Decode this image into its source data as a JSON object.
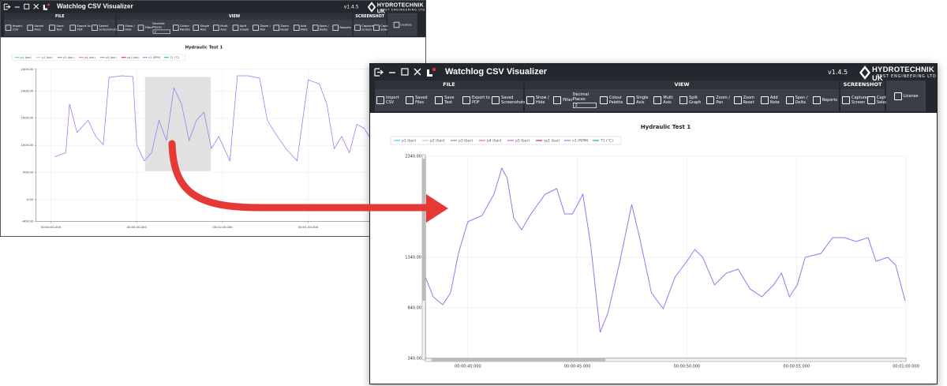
{
  "app": {
    "title": "Watchlog CSV Visualizer",
    "version": "v1.4.5",
    "logo": "HYDROTECHNIK UK",
    "logo_sub": "TEST ENGINEERING LTD"
  },
  "toolbar": {
    "groups": [
      {
        "title": "FILE",
        "buttons": [
          "Import CSV",
          "Saved Files",
          "Save Test",
          "Export to PDF",
          "Saved Screenshots"
        ]
      },
      {
        "title": "VIEW",
        "buttons": [
          "Show / Hide",
          "Filter",
          "Colour Palette",
          "Single Axis",
          "Multi Axis",
          "Split Graph",
          "Zoom / Pan",
          "Zoom Reset",
          "Add Note",
          "Span / Delta",
          "Reports"
        ]
      },
      {
        "title": "SCREENSHOT",
        "buttons": [
          "Capture Screen",
          "Capture Selection"
        ]
      }
    ],
    "decimal": {
      "label": "Decimal Places",
      "value": "2"
    },
    "license": "License"
  },
  "legend": [
    {
      "name": "p1 (bar)",
      "color": "#4fc3f7"
    },
    {
      "name": "p2 (bar)",
      "color": "#a5d6a7"
    },
    {
      "name": "p3 (bar)",
      "color": "#6c8ebf"
    },
    {
      "name": "p4 (bar)",
      "color": "#e57373"
    },
    {
      "name": "p5 (bar)",
      "color": "#ba68c8"
    },
    {
      "name": "sp1 (bar)",
      "color": "#c62828"
    },
    {
      "name": "n1 (RPM)",
      "color": "#a070f0"
    },
    {
      "name": "T1 (°C)",
      "color": "#26a69a"
    }
  ],
  "overview_chart": {
    "type": "line",
    "title": "Hydraulic Test 1",
    "xlim": [
      -5.2,
      112.2
    ],
    "ylim": [
      -400,
      2400
    ],
    "xticks": [
      {
        "value": 0,
        "label": "00:00:00.000"
      },
      {
        "value": 30,
        "label": "00:00:30.000"
      },
      {
        "value": 60,
        "label": "00:01:00.000"
      },
      {
        "value": 90,
        "label": "00:01:30.000"
      }
    ],
    "yticks": [
      {
        "value": -400,
        "label": "-400.00"
      },
      {
        "value": 0,
        "label": "0.00"
      },
      {
        "value": 500,
        "label": "500.00"
      },
      {
        "value": 1000,
        "label": "1000.00"
      },
      {
        "value": 1500,
        "label": "1500.00"
      },
      {
        "value": 2000,
        "label": "2000.00"
      },
      {
        "value": 2400,
        "label": "2400.00"
      }
    ],
    "grid": true,
    "x": [
      1.3,
      5.2,
      6.5,
      9.1,
      13.0,
      15.7,
      18.3,
      20.3,
      24.8,
      28.7,
      30.0,
      32.6,
      35.2,
      37.8,
      40.4,
      43.0,
      45.7,
      48.3,
      50.9,
      53.5,
      56.1,
      58.7,
      62.6,
      65.2,
      69.1,
      73.0,
      75.7,
      78.3,
      82.2,
      86.1,
      90.0,
      93.9,
      96.5,
      99.1,
      101.7,
      104.4,
      107.0,
      109.6,
      112.2
    ],
    "series": [
      {
        "color": "#a070f0",
        "values": [
          790,
          864,
          1759,
          1237,
          1461,
          1162,
          1013,
          2250,
          2280,
          2265,
          1013,
          715,
          864,
          1461,
          1088,
          2057,
          1759,
          1088,
          1461,
          1610,
          939,
          1162,
          715,
          2280,
          2280,
          2235,
          1461,
          1237,
          939,
          715,
          2206,
          2131,
          1759,
          939,
          1162,
          864,
          1386,
          1312,
          1088
        ]
      }
    ]
  },
  "zoom_chart": {
    "type": "line",
    "title": "Hydraulic Test 1",
    "xlim": [
      38.06,
      60
    ],
    "ylim": [
      340,
      2340
    ],
    "xticks": [
      {
        "value": 40,
        "label": "00:00:40.000"
      },
      {
        "value": 45,
        "label": "00:00:45.000"
      },
      {
        "value": 50,
        "label": "00:00:50.000"
      },
      {
        "value": 55,
        "label": "00:00:55.000"
      },
      {
        "value": 60,
        "label": "00:01:00.000"
      }
    ],
    "yticks": [
      {
        "value": 340,
        "label": "340.00"
      },
      {
        "value": 840,
        "label": "840.00"
      },
      {
        "value": 1340,
        "label": "1340.00"
      },
      {
        "value": 2340,
        "label": "2340.00"
      }
    ],
    "grid": true,
    "x": [
      38.06,
      38.42,
      38.85,
      39.21,
      39.57,
      40.0,
      40.65,
      41.19,
      41.55,
      41.8,
      42.09,
      42.45,
      42.88,
      43.53,
      44.06,
      44.42,
      44.78,
      45.25,
      45.61,
      46.04,
      46.4,
      46.94,
      47.48,
      47.84,
      48.38,
      48.92,
      49.46,
      50.0,
      50.36,
      50.72,
      51.26,
      51.8,
      52.34,
      52.88,
      53.42,
      53.96,
      54.32,
      54.68,
      55.04,
      55.4,
      56.12,
      56.65,
      57.19,
      57.73,
      58.27,
      58.63,
      59.17,
      59.53,
      59.96
    ],
    "series": [
      {
        "color": "#a070f0",
        "values": [
          1145,
          949,
          871,
          988,
          1379,
          1692,
          1754,
          1965,
          2223,
          2121,
          1731,
          1613,
          1770,
          1965,
          2020,
          1770,
          1770,
          1965,
          1457,
          598,
          793,
          1301,
          1863,
          1535,
          988,
          832,
          1145,
          1301,
          1418,
          1340,
          1067,
          1184,
          1223,
          1027,
          949,
          1067,
          1184,
          949,
          1067,
          1340,
          1379,
          1535,
          1535,
          1496,
          1535,
          1301,
          1340,
          1262,
          910
        ]
      }
    ]
  }
}
